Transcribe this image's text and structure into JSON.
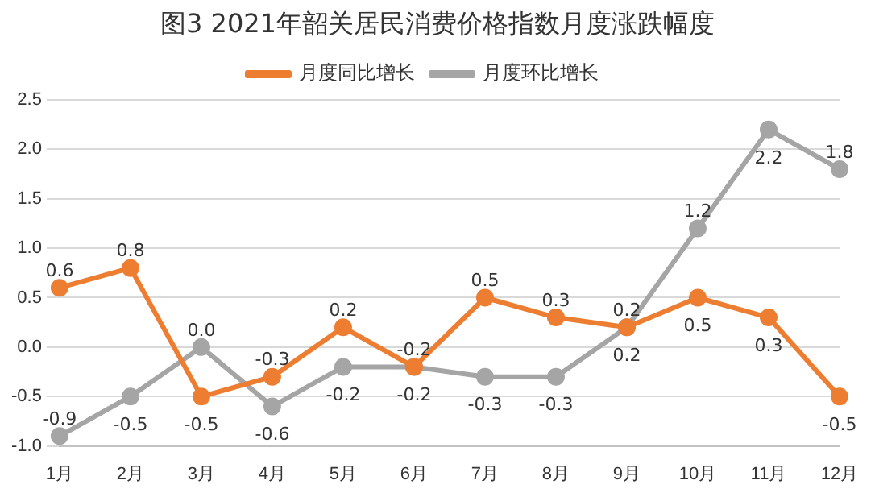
{
  "chart_data": {
    "type": "line",
    "title": "图3 2021年韶关居民消费价格指数月度涨跌幅度",
    "categories": [
      "1月",
      "2月",
      "3月",
      "4月",
      "5月",
      "6月",
      "7月",
      "8月",
      "9月",
      "10月",
      "11月",
      "12月"
    ],
    "series": [
      {
        "name": "月度同比增长",
        "color": "#ed7d31",
        "values": [
          0.6,
          0.8,
          -0.5,
          -0.3,
          0.2,
          -0.2,
          0.5,
          0.3,
          0.2,
          0.5,
          0.3,
          -0.5
        ],
        "value_labels": [
          "0.6",
          "0.8",
          "-0.5",
          "-0.3",
          "0.2",
          "-0.2",
          "0.5",
          "0.3",
          "0.2",
          "0.5",
          "0.3",
          "-0.5"
        ]
      },
      {
        "name": "月度环比增长",
        "color": "#a5a5a5",
        "values": [
          -0.9,
          -0.5,
          0.0,
          -0.6,
          -0.2,
          -0.2,
          -0.3,
          -0.3,
          0.2,
          1.2,
          2.2,
          1.8
        ],
        "value_labels": [
          "-0.9",
          "-0.5",
          "0.0",
          "-0.6",
          "-0.2",
          "-0.2",
          "-0.3",
          "-0.3",
          "0.2",
          "1.2",
          "2.2",
          "1.8"
        ]
      }
    ],
    "ylim": [
      -1.0,
      2.5
    ],
    "yticks": [
      {
        "value": -1.0,
        "label": "-1.0"
      },
      {
        "value": -0.5,
        "label": "-0.5"
      },
      {
        "value": 0,
        "label": "0.0"
      },
      {
        "value": 0.5,
        "label": "0.5"
      },
      {
        "value": 1.0,
        "label": "1.0"
      },
      {
        "value": 1.5,
        "label": "1.5"
      },
      {
        "value": 2.0,
        "label": "2.0"
      },
      {
        "value": 2.5,
        "label": "2.5"
      }
    ],
    "grid": "y",
    "legend": "top",
    "marker": "circle",
    "line_style": "solid"
  }
}
